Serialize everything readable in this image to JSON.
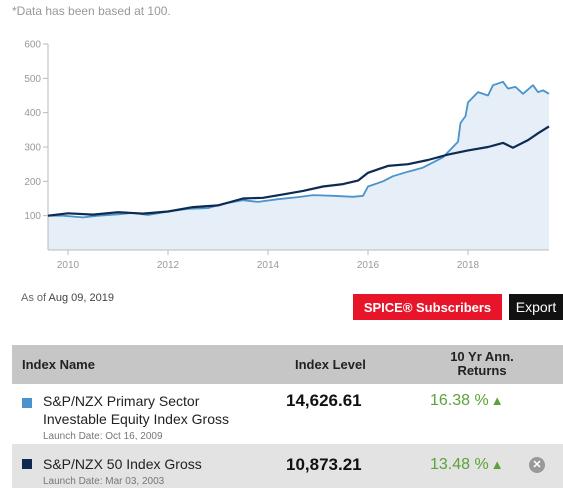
{
  "note": "*Data has been based at 100.",
  "as_of": {
    "label": "As of",
    "date": "Aug 09, 2019"
  },
  "buttons": {
    "spice": "SPICE® Subscribers",
    "export": "Export"
  },
  "table": {
    "headers": {
      "name": "Index Name",
      "level": "Index Level",
      "returns": "10 Yr Ann. Returns"
    },
    "rows": [
      {
        "name": "S&P/NZX Primary Sector Investable Equity Index Gross",
        "launch_label": "Launch Date:",
        "launch_date": "Oct 16, 2009",
        "level": "14,626.61",
        "return": "16.38 %",
        "swatch_color": "#4a93cc"
      },
      {
        "name": "S&P/NZX 50 Index Gross",
        "launch_label": "Launch Date:",
        "launch_date": "Mar 03, 2003",
        "level": "10,873.21",
        "return": "13.48 %",
        "swatch_color": "#0f2a52"
      }
    ]
  },
  "chart_data": {
    "type": "line",
    "title": "",
    "xlabel": "",
    "ylabel": "",
    "xlim": [
      2009.6,
      2019.62
    ],
    "ylim": [
      0,
      600
    ],
    "y_ticks": [
      100,
      200,
      300,
      400,
      500,
      600
    ],
    "x_ticks": [
      2010,
      2012,
      2014,
      2016,
      2018
    ],
    "grid": false,
    "series": [
      {
        "name": "S&P/NZX Primary Sector Investable Equity Index Gross",
        "color": "#4a93cc",
        "area": true,
        "points": [
          [
            2009.6,
            100
          ],
          [
            2009.9,
            100
          ],
          [
            2010.3,
            95
          ],
          [
            2010.6,
            100
          ],
          [
            2011.0,
            104
          ],
          [
            2011.3,
            108
          ],
          [
            2011.6,
            102
          ],
          [
            2012.0,
            112
          ],
          [
            2012.4,
            120
          ],
          [
            2012.8,
            122
          ],
          [
            2013.1,
            135
          ],
          [
            2013.5,
            145
          ],
          [
            2013.8,
            140
          ],
          [
            2014.2,
            148
          ],
          [
            2014.6,
            154
          ],
          [
            2014.9,
            160
          ],
          [
            2015.3,
            158
          ],
          [
            2015.7,
            155
          ],
          [
            2015.9,
            158
          ],
          [
            2016.0,
            185
          ],
          [
            2016.3,
            200
          ],
          [
            2016.5,
            215
          ],
          [
            2016.8,
            228
          ],
          [
            2017.1,
            240
          ],
          [
            2017.5,
            270
          ],
          [
            2017.8,
            315
          ],
          [
            2017.85,
            370
          ],
          [
            2017.95,
            390
          ],
          [
            2018.0,
            430
          ],
          [
            2018.2,
            460
          ],
          [
            2018.4,
            450
          ],
          [
            2018.5,
            480
          ],
          [
            2018.7,
            490
          ],
          [
            2018.8,
            470
          ],
          [
            2018.95,
            475
          ],
          [
            2019.1,
            455
          ],
          [
            2019.3,
            480
          ],
          [
            2019.4,
            460
          ],
          [
            2019.5,
            465
          ],
          [
            2019.62,
            455
          ]
        ]
      },
      {
        "name": "S&P/NZX 50 Index Gross",
        "color": "#0f2a52",
        "area": false,
        "points": [
          [
            2009.6,
            100
          ],
          [
            2010.0,
            107
          ],
          [
            2010.5,
            103
          ],
          [
            2011.0,
            110
          ],
          [
            2011.5,
            106
          ],
          [
            2012.0,
            112
          ],
          [
            2012.5,
            125
          ],
          [
            2013.0,
            130
          ],
          [
            2013.5,
            150
          ],
          [
            2013.9,
            152
          ],
          [
            2014.3,
            162
          ],
          [
            2014.7,
            172
          ],
          [
            2015.1,
            185
          ],
          [
            2015.5,
            192
          ],
          [
            2015.8,
            202
          ],
          [
            2016.0,
            225
          ],
          [
            2016.4,
            245
          ],
          [
            2016.8,
            250
          ],
          [
            2017.2,
            262
          ],
          [
            2017.6,
            278
          ],
          [
            2018.0,
            290
          ],
          [
            2018.4,
            300
          ],
          [
            2018.7,
            312
          ],
          [
            2018.9,
            298
          ],
          [
            2019.2,
            320
          ],
          [
            2019.4,
            340
          ],
          [
            2019.62,
            360
          ]
        ]
      }
    ]
  }
}
